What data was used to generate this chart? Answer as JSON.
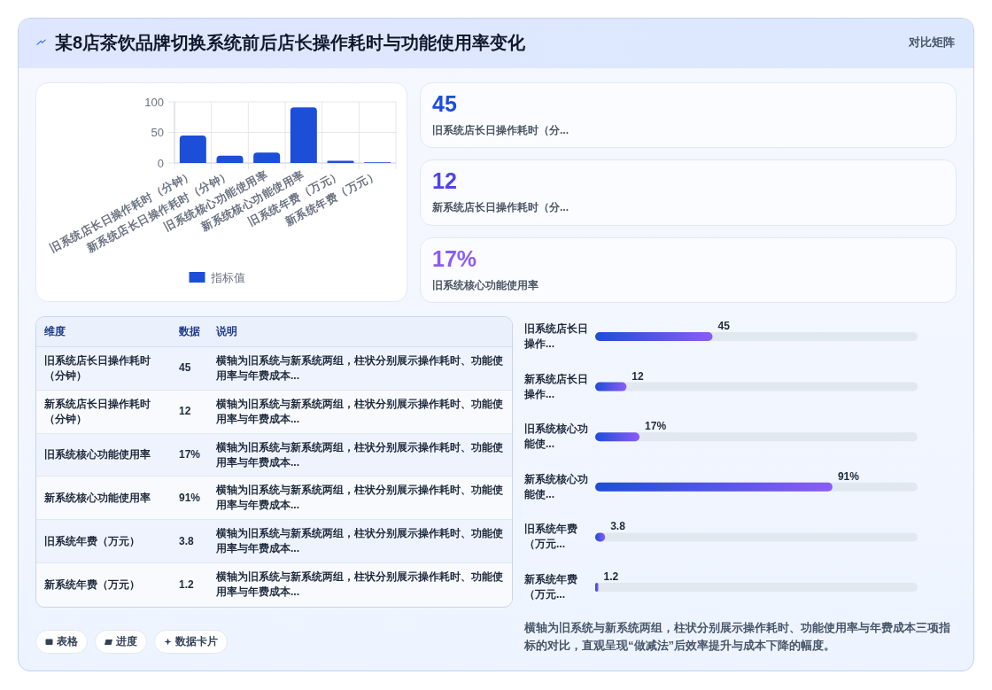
{
  "chart_data": [
    {
      "type": "other",
      "title": "某8店茶饮品牌切换系统前后店长操作耗时与功能使用率变化",
      "subtitle": "对比矩阵"
    },
    {
      "type": "bar",
      "categories": [
        "旧系统店长日操作耗时（分钟）",
        "新系统店长日操作耗时（分钟）",
        "旧系统核心功能使用率",
        "新系统核心功能使用率",
        "旧系统年费（万元）",
        "新系统年费（万元）"
      ],
      "series": [
        {
          "name": "指标值",
          "color": "#1d4ed8",
          "values": [
            45,
            12,
            17,
            91,
            3.8,
            1.2
          ]
        }
      ],
      "ylim": [
        0,
        100
      ],
      "yticks": [
        0,
        50,
        100
      ],
      "grid": true,
      "legend": "bottom"
    },
    {
      "type": "other",
      "y_categories": [
        "旧系统店长日操作耗时（分...",
        "新系统店长日操作耗时（分...",
        "旧系统核心功能使用率"
      ],
      "cell_labels": [
        [
          "45"
        ],
        [
          "12"
        ],
        [
          "17%"
        ]
      ],
      "colors": [
        "#1d4ed8",
        "#4f46e5",
        "#8b5cf6"
      ]
    },
    {
      "type": "other",
      "categories": [
        "维度",
        "数据",
        "说明"
      ],
      "y_categories": [
        "旧系统店长日操作耗时（分钟）",
        "新系统店长日操作耗时（分钟）",
        "旧系统核心功能使用率",
        "新系统核心功能使用率",
        "旧系统年费（万元）",
        "新系统年费（万元）"
      ],
      "cell_labels": [
        [
          "45",
          "横轴为旧系统与新系统两组，柱状分别展示操作耗时、功能使用率与年费成本..."
        ],
        [
          "12",
          "横轴为旧系统与新系统两组，柱状分别展示操作耗时、功能使用率与年费成本..."
        ],
        [
          "17%",
          "横轴为旧系统与新系统两组，柱状分别展示操作耗时、功能使用率与年费成本..."
        ],
        [
          "91%",
          "横轴为旧系统与新系统两组，柱状分别展示操作耗时、功能使用率与年费成本..."
        ],
        [
          "3.8",
          "横轴为旧系统与新系统两组，柱状分别展示操作耗时、功能使用率与年费成本..."
        ],
        [
          "1.2",
          "横轴为旧系统与新系统两组，柱状分别展示操作耗时、功能使用率与年费成本..."
        ]
      ]
    },
    {
      "type": "bar",
      "orientation": "horizontal",
      "categories": [
        "旧系统店长日操作...",
        "新系统店长日操作...",
        "旧系统核心功能使...",
        "新系统核心功能使...",
        "旧系统年费（万元...",
        "新系统年费（万元..."
      ],
      "values": [
        45,
        12,
        17,
        91,
        3.8,
        1.2
      ],
      "value_labels": [
        "45",
        "12",
        "17%",
        "91%",
        "3.8",
        "1.2"
      ],
      "color": "#1d4ed8",
      "tick_labels": "y",
      "annotations": [
        "横轴为旧系统与新系统两组，柱状分别展示操作耗时、功能使用率与年费成本三项指标的对比，直观呈现“做减法”后效率提升与成本下降的幅度。"
      ]
    },
    {
      "type": "other",
      "annotations": [
        "表格",
        "进度",
        "数据卡片"
      ]
    }
  ]
}
